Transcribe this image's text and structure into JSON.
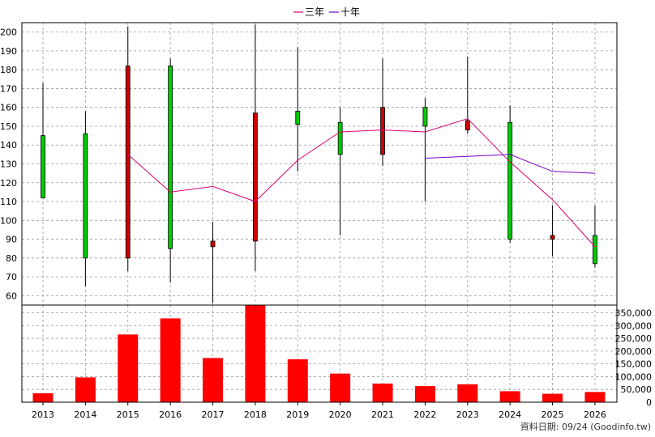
{
  "chart_data": {
    "type": "candlestick+bar",
    "legend": [
      {
        "name": "三年",
        "color": "#dd0077"
      },
      {
        "name": "十年",
        "color": "#7700cc"
      }
    ],
    "categories": [
      "2013",
      "2014",
      "2015",
      "2016",
      "2017",
      "2018",
      "2019",
      "2020",
      "2021",
      "2022",
      "2023",
      "2024",
      "2025",
      "2026"
    ],
    "price_axis": {
      "ylim": [
        55,
        205
      ],
      "ticks": [
        60,
        70,
        80,
        90,
        100,
        110,
        120,
        130,
        140,
        150,
        160,
        170,
        180,
        190,
        200
      ],
      "grid": true
    },
    "candles": [
      {
        "open": 112,
        "high": 173,
        "low": 112,
        "close": 145
      },
      {
        "open": 80,
        "high": 158,
        "low": 65,
        "close": 146
      },
      {
        "open": 182,
        "high": 203,
        "low": 73,
        "close": 80
      },
      {
        "open": 85,
        "high": 186,
        "low": 67,
        "close": 182
      },
      {
        "open": 89,
        "high": 99,
        "low": 56,
        "close": 86
      },
      {
        "open": 157,
        "high": 204,
        "low": 73,
        "close": 89
      },
      {
        "open": 151,
        "high": 192,
        "low": 126,
        "close": 158
      },
      {
        "open": 135,
        "high": 160,
        "low": 92,
        "close": 152
      },
      {
        "open": 160,
        "high": 186,
        "low": 129,
        "close": 135
      },
      {
        "open": 150,
        "high": 165,
        "low": 110,
        "close": 160
      },
      {
        "open": 153,
        "high": 187,
        "low": 146,
        "close": 148
      },
      {
        "open": 90,
        "high": 161,
        "low": 88,
        "close": 152
      },
      {
        "open": 92,
        "high": 108,
        "low": 81,
        "close": 90
      },
      {
        "open": 77,
        "high": 108,
        "low": 75,
        "close": 92
      }
    ],
    "series": [
      {
        "name": "三年",
        "color": "#dd0077",
        "values": [
          null,
          null,
          135,
          115,
          118,
          110,
          132,
          147,
          148,
          147,
          154,
          131,
          111,
          86
        ]
      },
      {
        "name": "十年",
        "color": "#7700cc",
        "values": [
          null,
          null,
          null,
          null,
          null,
          null,
          null,
          null,
          null,
          133,
          134,
          135,
          126,
          125
        ]
      }
    ],
    "volume_axis": {
      "ylim": [
        0,
        380000
      ],
      "ticks": [
        "0",
        "50,000",
        "100,000",
        "150,000",
        "200,000",
        "250,000",
        "300,000",
        "350,000"
      ]
    },
    "volume": [
      35000,
      97000,
      265000,
      328000,
      173000,
      393000,
      168000,
      112000,
      73000,
      63000,
      70000,
      43000,
      33000,
      40000
    ],
    "up_color": "#00cc00",
    "down_color": "#cc0000",
    "volume_color": "#ff0000"
  },
  "footer": "資料日期: 09/24  (Goodinfo.tw)"
}
